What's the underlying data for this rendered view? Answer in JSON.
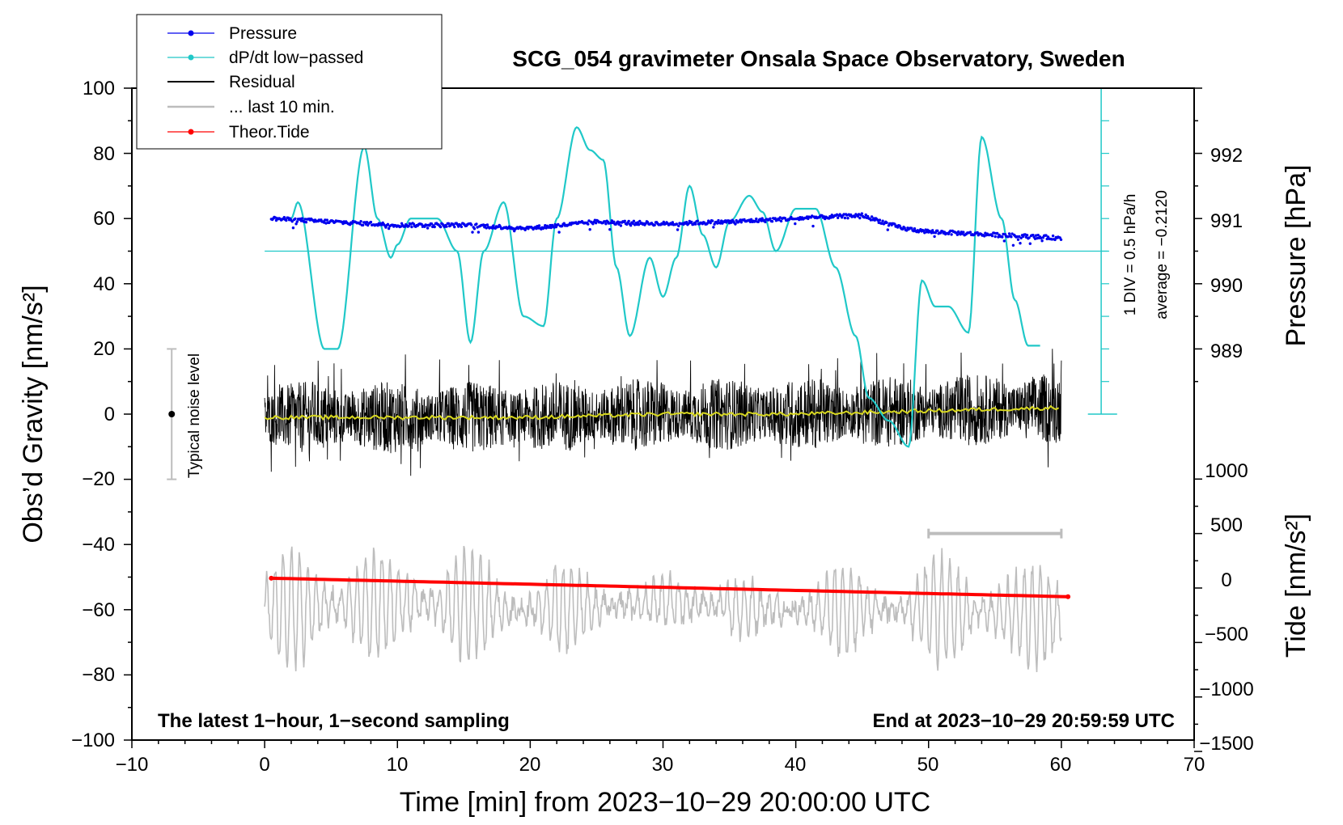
{
  "chart_data": {
    "type": "line",
    "title": "SCG_054 gravimeter Onsala Space Observatory, Sweden",
    "xlabel": "Time [min] from 2023−10−29 20:00:00 UTC",
    "ylabel_left": "Obs’d Gravity [nm/s²]",
    "ylabel_right_top": "Pressure [hPa]",
    "ylabel_right_bottom": "Tide [nm/s²]",
    "xlim": [
      -10,
      70
    ],
    "ylim": [
      -100,
      100
    ],
    "pressure_lim": [
      988,
      993
    ],
    "tide_lim": [
      -1500,
      1500
    ],
    "x_ticks": [
      "−10",
      "0",
      "10",
      "20",
      "30",
      "40",
      "50",
      "60",
      "70"
    ],
    "y_ticks": [
      "100",
      "80",
      "60",
      "40",
      "20",
      "0",
      "−20",
      "−40",
      "−60",
      "−80",
      "−100"
    ],
    "pressure_ticks": [
      "992",
      "991",
      "990",
      "989"
    ],
    "tide_ticks": [
      "1000",
      "500",
      "0",
      "−500",
      "−1000",
      "−1500"
    ],
    "legend": [
      {
        "label": "Pressure",
        "color": "#0000ee",
        "marker": true
      },
      {
        "label": "dP/dt low−passed",
        "color": "#20c8c8",
        "marker": true
      },
      {
        "label": "Residual",
        "color": "#000000",
        "marker": false
      },
      {
        "label": "... last 10 min.",
        "color": "#bdbdbd",
        "marker": false
      },
      {
        "label": "Theor.Tide",
        "color": "#ff0000",
        "marker": true
      }
    ],
    "annotations": {
      "bottom_left": "The latest 1−hour, 1−second sampling",
      "bottom_right": "End at 2023−10−29 20:59:59 UTC",
      "noise": "Typical noise level",
      "div": "1 DIV = 0.5 hPa/h",
      "average": "average = −0.2120"
    },
    "series": [
      {
        "name": "Pressure",
        "axis": "pressure_hPa",
        "x": [
          0.5,
          5,
          10,
          15,
          20,
          25,
          30,
          35,
          40,
          45,
          48,
          50,
          55,
          60
        ],
        "values": [
          991.0,
          990.95,
          990.9,
          990.9,
          990.85,
          990.95,
          990.92,
          990.95,
          991.0,
          991.05,
          990.85,
          990.8,
          990.75,
          990.7
        ]
      },
      {
        "name": "dP/dt low−passed",
        "axis": "gravity_nm_s2",
        "x": [
          2,
          2.5,
          4.5,
          5.5,
          7.5,
          8.5,
          9.5,
          10,
          11,
          13,
          14.5,
          15.5,
          16.5,
          18,
          19.5,
          21,
          22,
          23.5,
          24.5,
          25.5,
          26.5,
          27.5,
          29,
          30,
          31,
          32,
          33,
          34,
          35,
          36.5,
          37.5,
          38.5,
          40,
          41.5,
          43,
          44.5,
          45.5,
          47,
          48.5,
          49.5,
          50.5,
          51.5,
          53,
          54,
          55.5,
          56.5,
          57.5,
          58.5
        ],
        "values": [
          60,
          65,
          20,
          20,
          82,
          60,
          48,
          52,
          60,
          60,
          50,
          22,
          50,
          65,
          30,
          27,
          60,
          88,
          81,
          78,
          45,
          24,
          48,
          36,
          48,
          70,
          55,
          45,
          59,
          67,
          62,
          50,
          63,
          63,
          45,
          24,
          5,
          -2,
          -10,
          41,
          33,
          33,
          25,
          85,
          60,
          35,
          21,
          21
        ]
      },
      {
        "name": "Residual",
        "axis": "gravity_nm_s2",
        "x": [
          0,
          10,
          20,
          30,
          40,
          50,
          60
        ],
        "values": [
          -1,
          -1,
          -1,
          0,
          0,
          1,
          2
        ]
      },
      {
        "name": "... last 10 min.",
        "axis": "gravity_nm_s2",
        "x": [
          0,
          10,
          20,
          30,
          40,
          50,
          60
        ],
        "values": [
          -60,
          -58,
          -60,
          -58,
          -60,
          -60,
          -62
        ]
      },
      {
        "name": "Theor.Tide",
        "axis": "tide_nm_s2",
        "x": [
          0.5,
          60.5
        ],
        "values": [
          90,
          -80
        ]
      }
    ],
    "noise_bar": {
      "x": -7,
      "center": 0,
      "low": -20,
      "high": 20
    },
    "last10_bar": {
      "x_start": 50,
      "x_end": 60
    }
  }
}
